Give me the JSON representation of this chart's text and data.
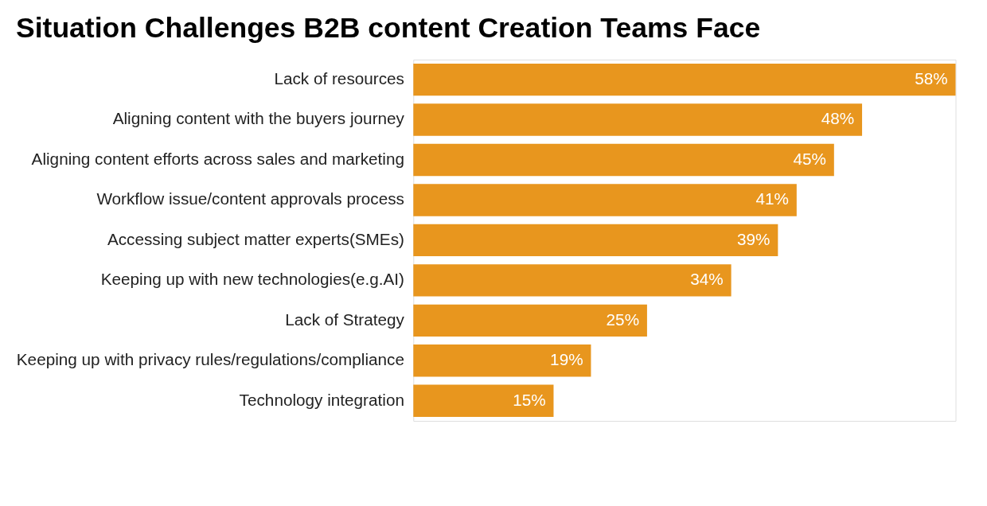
{
  "chart_data": {
    "type": "bar",
    "orientation": "horizontal",
    "title": "Situation Challenges B2B content Creation Teams Face",
    "categories": [
      "Lack of resources",
      "Aligning content with the buyers journey",
      "Aligning content efforts across sales and marketing",
      "Workflow issue/content approvals process",
      "Accessing subject matter experts(SMEs)",
      "Keeping up with new technologies(e.g.AI)",
      "Lack of Strategy",
      "Keeping up with privacy rules/regulations/compliance",
      "Technology integration"
    ],
    "values": [
      58,
      48,
      45,
      41,
      39,
      34,
      25,
      19,
      15
    ],
    "value_labels": [
      "58%",
      "48%",
      "45%",
      "41%",
      "39%",
      "34%",
      "25%",
      "19%",
      "15%"
    ],
    "color": "#e8961e",
    "grid": false,
    "tick_labels": "y"
  }
}
